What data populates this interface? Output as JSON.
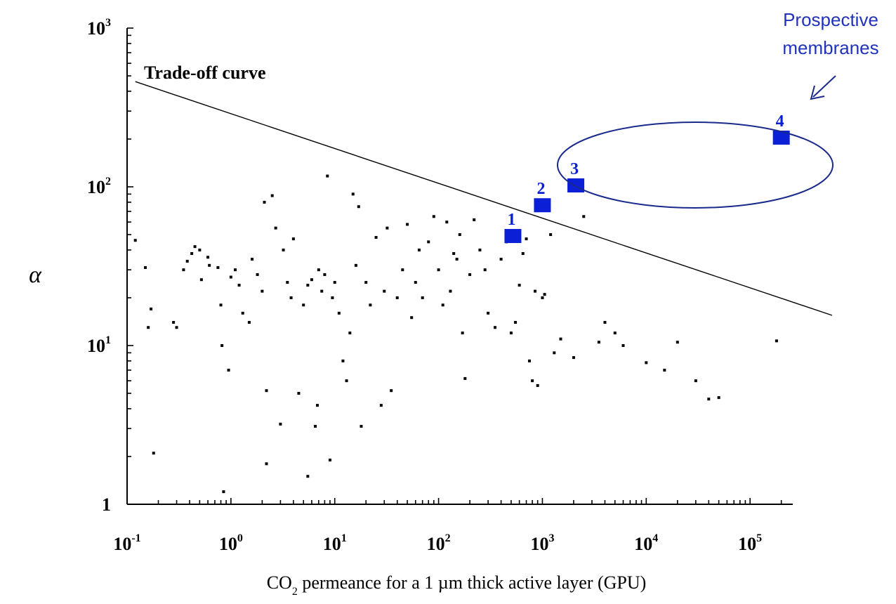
{
  "chart_data": {
    "type": "scatter",
    "title": "",
    "xlabel": "CO",
    "xlabel_sub": "2",
    "xlabel_rest": " permeance for a 1 µm thick active layer (GPU)",
    "ylabel": "α",
    "x_scale": "log",
    "y_scale": "log",
    "xlim": [
      0.1,
      250000
    ],
    "ylim": [
      1,
      1000
    ],
    "x_ticks": [
      {
        "base": "10",
        "exp": "-1",
        "value": 0.1
      },
      {
        "base": "10",
        "exp": "0",
        "value": 1
      },
      {
        "base": "10",
        "exp": "1",
        "value": 10
      },
      {
        "base": "10",
        "exp": "2",
        "value": 100
      },
      {
        "base": "10",
        "exp": "3",
        "value": 1000
      },
      {
        "base": "10",
        "exp": "4",
        "value": 10000
      },
      {
        "base": "10",
        "exp": "5",
        "value": 100000
      }
    ],
    "y_ticks": [
      {
        "base": "1",
        "exp": "",
        "value": 1
      },
      {
        "base": "10",
        "exp": "1",
        "value": 10
      },
      {
        "base": "10",
        "exp": "2",
        "value": 100
      },
      {
        "base": "10",
        "exp": "3",
        "value": 1000
      }
    ],
    "grid": false,
    "tradeoff": {
      "label": "Trade-off curve",
      "from": [
        0.12,
        460
      ],
      "to": [
        250000,
        15.5
      ]
    },
    "highlighted": [
      {
        "label": "1",
        "x": 520,
        "y": 48
      },
      {
        "label": "2",
        "x": 1000,
        "y": 75
      },
      {
        "label": "3",
        "x": 2100,
        "y": 100
      },
      {
        "label": "4",
        "x": 200000,
        "y": 200
      }
    ],
    "annotation": {
      "line1": "Prospective",
      "line2": "membranes",
      "color": "#2233bb"
    },
    "highlight_color": "#0a1fd6",
    "point_color": "#000000",
    "series": [
      {
        "points": [
          [
            0.12,
            46
          ],
          [
            0.15,
            31
          ],
          [
            0.16,
            13
          ],
          [
            0.17,
            17
          ],
          [
            0.18,
            2.1
          ],
          [
            0.28,
            14
          ],
          [
            0.3,
            13
          ],
          [
            0.35,
            30
          ],
          [
            0.38,
            34
          ],
          [
            0.42,
            38
          ],
          [
            0.45,
            42
          ],
          [
            0.5,
            40
          ],
          [
            0.52,
            26
          ],
          [
            0.6,
            36
          ],
          [
            0.62,
            32
          ],
          [
            0.75,
            31
          ],
          [
            0.8,
            18
          ],
          [
            0.82,
            10
          ],
          [
            0.85,
            1.2
          ],
          [
            0.95,
            7
          ],
          [
            1.0,
            27
          ],
          [
            1.1,
            30
          ],
          [
            1.2,
            24
          ],
          [
            1.3,
            16
          ],
          [
            1.5,
            14
          ],
          [
            1.6,
            35
          ],
          [
            1.8,
            28
          ],
          [
            2.0,
            22
          ],
          [
            2.1,
            80
          ],
          [
            2.2,
            5.2
          ],
          [
            2.2,
            1.8
          ],
          [
            2.5,
            88
          ],
          [
            2.7,
            55
          ],
          [
            3.0,
            3.2
          ],
          [
            3.2,
            40
          ],
          [
            3.5,
            25
          ],
          [
            3.8,
            20
          ],
          [
            4.0,
            47
          ],
          [
            4.5,
            5
          ],
          [
            5.0,
            18
          ],
          [
            5.5,
            1.5
          ],
          [
            5.5,
            24
          ],
          [
            6.0,
            26
          ],
          [
            6.5,
            3.1
          ],
          [
            6.8,
            4.2
          ],
          [
            7.0,
            30
          ],
          [
            7.5,
            22
          ],
          [
            8.0,
            28
          ],
          [
            8.5,
            117
          ],
          [
            9.0,
            1.9
          ],
          [
            9.5,
            20
          ],
          [
            10,
            25
          ],
          [
            11,
            16
          ],
          [
            12,
            8
          ],
          [
            13,
            6
          ],
          [
            14,
            12
          ],
          [
            15,
            90
          ],
          [
            16,
            32
          ],
          [
            17,
            75
          ],
          [
            18,
            3.1
          ],
          [
            20,
            25
          ],
          [
            22,
            18
          ],
          [
            25,
            48
          ],
          [
            28,
            4.2
          ],
          [
            30,
            22
          ],
          [
            32,
            55
          ],
          [
            35,
            5.2
          ],
          [
            40,
            20
          ],
          [
            45,
            30
          ],
          [
            50,
            58
          ],
          [
            55,
            15
          ],
          [
            60,
            25
          ],
          [
            65,
            40
          ],
          [
            70,
            20
          ],
          [
            80,
            45
          ],
          [
            90,
            65
          ],
          [
            100,
            30
          ],
          [
            110,
            18
          ],
          [
            120,
            60
          ],
          [
            130,
            22
          ],
          [
            140,
            38
          ],
          [
            150,
            35
          ],
          [
            160,
            50
          ],
          [
            170,
            12
          ],
          [
            180,
            6.2
          ],
          [
            200,
            28
          ],
          [
            220,
            62
          ],
          [
            250,
            40
          ],
          [
            280,
            30
          ],
          [
            300,
            16
          ],
          [
            350,
            13
          ],
          [
            400,
            35
          ],
          [
            450,
            45
          ],
          [
            500,
            12
          ],
          [
            550,
            14
          ],
          [
            600,
            24
          ],
          [
            650,
            38
          ],
          [
            700,
            47
          ],
          [
            750,
            8
          ],
          [
            800,
            6
          ],
          [
            850,
            22
          ],
          [
            900,
            5.6
          ],
          [
            1000,
            20
          ],
          [
            1050,
            21
          ],
          [
            1200,
            50
          ],
          [
            1300,
            9
          ],
          [
            1500,
            11
          ],
          [
            2000,
            8.4
          ],
          [
            2500,
            65
          ],
          [
            3500,
            10.5
          ],
          [
            4000,
            14
          ],
          [
            5000,
            12
          ],
          [
            6000,
            10
          ],
          [
            10000,
            7.8
          ],
          [
            15000,
            7
          ],
          [
            20000,
            10.5
          ],
          [
            30000,
            6
          ],
          [
            40000,
            4.6
          ],
          [
            50000,
            4.7
          ],
          [
            180000,
            10.7
          ]
        ]
      }
    ]
  }
}
